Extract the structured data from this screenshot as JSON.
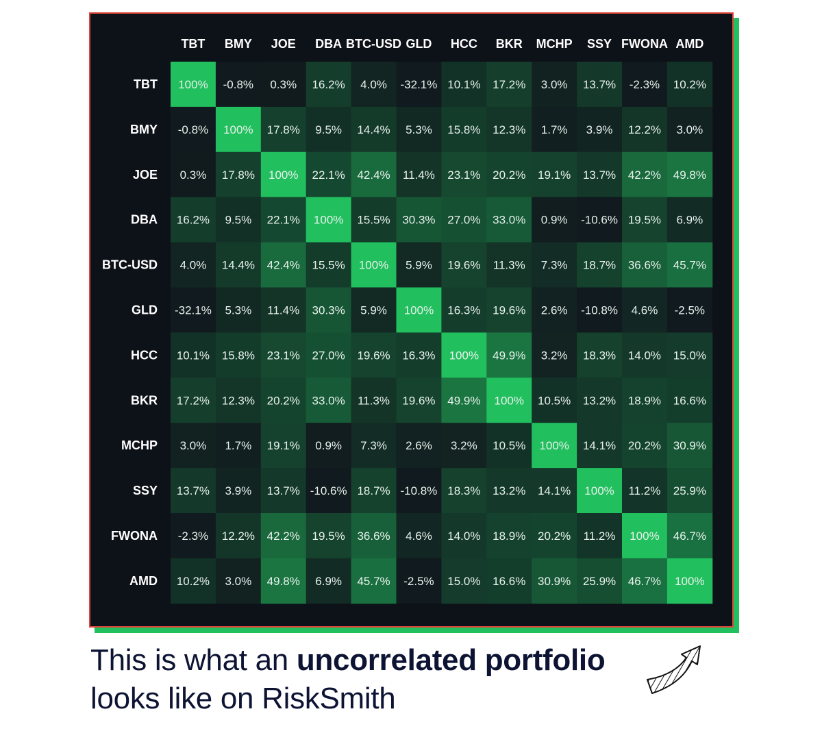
{
  "chart_data": {
    "type": "heatmap",
    "labels": [
      "TBT",
      "BMY",
      "JOE",
      "DBA",
      "BTC-USD",
      "GLD",
      "HCC",
      "BKR",
      "MCHP",
      "SSY",
      "FWONA",
      "AMD"
    ],
    "values": [
      [
        100,
        -0.8,
        0.3,
        16.2,
        4.0,
        -32.1,
        10.1,
        17.2,
        3.0,
        13.7,
        -2.3,
        10.2
      ],
      [
        -0.8,
        100,
        17.8,
        9.5,
        14.4,
        5.3,
        15.8,
        12.3,
        1.7,
        3.9,
        12.2,
        3.0
      ],
      [
        0.3,
        17.8,
        100,
        22.1,
        42.4,
        11.4,
        23.1,
        20.2,
        19.1,
        13.7,
        42.2,
        49.8
      ],
      [
        16.2,
        9.5,
        22.1,
        100,
        15.5,
        30.3,
        27.0,
        33.0,
        0.9,
        -10.6,
        19.5,
        6.9
      ],
      [
        4.0,
        14.4,
        42.4,
        15.5,
        100,
        5.9,
        19.6,
        11.3,
        7.3,
        18.7,
        36.6,
        45.7
      ],
      [
        -32.1,
        5.3,
        11.4,
        30.3,
        5.9,
        100,
        16.3,
        19.6,
        2.6,
        -10.8,
        4.6,
        -2.5
      ],
      [
        10.1,
        15.8,
        23.1,
        27.0,
        19.6,
        16.3,
        100,
        49.9,
        3.2,
        18.3,
        14.0,
        15.0
      ],
      [
        17.2,
        12.3,
        20.2,
        33.0,
        11.3,
        19.6,
        49.9,
        100,
        10.5,
        13.2,
        18.9,
        16.6
      ],
      [
        3.0,
        1.7,
        19.1,
        0.9,
        7.3,
        2.6,
        3.2,
        10.5,
        100,
        14.1,
        20.2,
        30.9
      ],
      [
        13.7,
        3.9,
        13.7,
        -10.6,
        18.7,
        -10.8,
        18.3,
        13.2,
        14.1,
        100,
        11.2,
        25.9
      ],
      [
        -2.3,
        12.2,
        42.2,
        19.5,
        36.6,
        4.6,
        14.0,
        18.9,
        20.2,
        11.2,
        100,
        46.7
      ],
      [
        10.2,
        3.0,
        49.8,
        6.9,
        45.7,
        -2.5,
        15.0,
        16.6,
        30.9,
        25.9,
        46.7,
        100
      ]
    ],
    "value_format": "percent",
    "colors": {
      "low": "#111a1e",
      "high": "#21bf5e",
      "background": "#0d1118",
      "frame": "#e0463a",
      "shadow": "#22c05e"
    }
  },
  "caption": {
    "line1_prefix": "This is what an ",
    "line1_bold": "uncorrelated portfolio",
    "line2": "looks like on RiskSmith"
  },
  "icons": {
    "caption_arrow": "hatched-curved-arrow-icon"
  }
}
